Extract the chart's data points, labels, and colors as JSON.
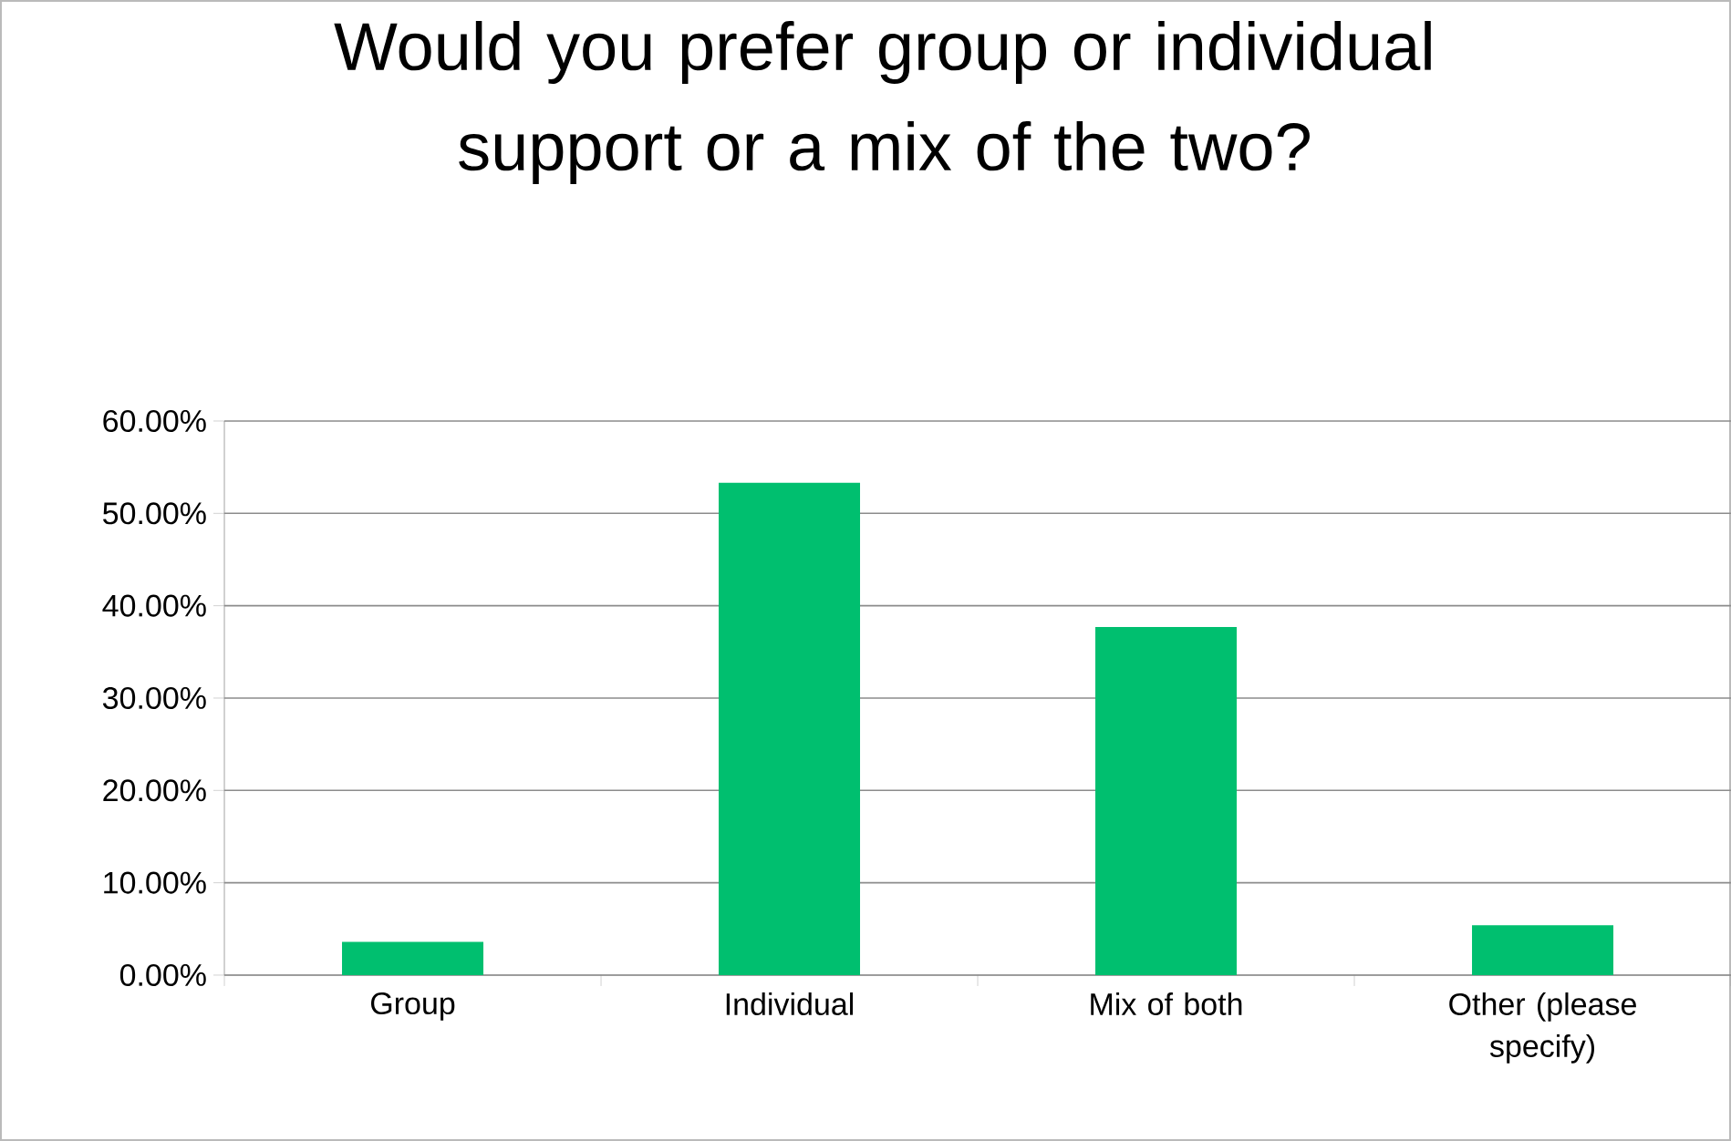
{
  "chart_data": {
    "type": "bar",
    "title": "Would you prefer group or individual support or a mix of the two?",
    "categories": [
      "Group",
      "Individual",
      "Mix of both",
      "Other (please specify)"
    ],
    "values": [
      3.6,
      53.3,
      37.7,
      5.4
    ],
    "color": "#00bf6f",
    "ylim": [
      0,
      60
    ],
    "yticks": [
      {
        "value": 0,
        "label": "0.00%"
      },
      {
        "value": 10,
        "label": "10.00%"
      },
      {
        "value": 20,
        "label": "20.00%"
      },
      {
        "value": 30,
        "label": "30.00%"
      },
      {
        "value": 40,
        "label": "40.00%"
      },
      {
        "value": 50,
        "label": "50.00%"
      },
      {
        "value": 60,
        "label": "60.00%"
      }
    ],
    "grid": "y"
  }
}
